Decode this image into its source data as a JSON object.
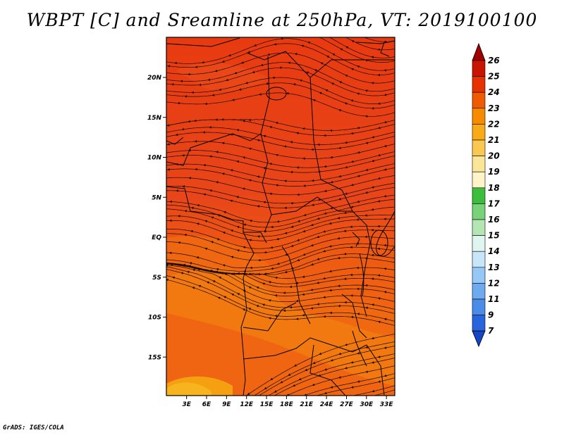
{
  "title": "WBPT [C] and Sreamline at 250hPa, VT: 2019100100",
  "footer": "GrADS: IGES/COLA",
  "map": {
    "lat_labels": [
      {
        "text": "20N",
        "lat": 20
      },
      {
        "text": "15N",
        "lat": 15
      },
      {
        "text": "10N",
        "lat": 10
      },
      {
        "text": "5N",
        "lat": 5
      },
      {
        "text": "EQ",
        "lat": 0
      },
      {
        "text": "5S",
        "lat": -5
      },
      {
        "text": "10S",
        "lat": -10
      },
      {
        "text": "15S",
        "lat": -15
      }
    ],
    "lon_labels": [
      {
        "text": "3E",
        "lon": 3
      },
      {
        "text": "6E",
        "lon": 6
      },
      {
        "text": "9E",
        "lon": 9
      },
      {
        "text": "12E",
        "lon": 12
      },
      {
        "text": "15E",
        "lon": 15
      },
      {
        "text": "18E",
        "lon": 18
      },
      {
        "text": "21E",
        "lon": 21
      },
      {
        "text": "24E",
        "lon": 24
      },
      {
        "text": "27E",
        "lon": 27
      },
      {
        "text": "30E",
        "lon": 30
      },
      {
        "text": "33E",
        "lon": 33
      }
    ]
  },
  "colorbar": {
    "levels": [
      "26",
      "25",
      "24",
      "23",
      "22",
      "21",
      "20",
      "19",
      "18",
      "17",
      "16",
      "15",
      "14",
      "13",
      "12",
      "11",
      "9",
      "7"
    ],
    "colors": [
      "#a00000",
      "#c81400",
      "#e63200",
      "#f05a00",
      "#f58c00",
      "#faaa14",
      "#fac850",
      "#fae696",
      "#fff5c8",
      "#3cbe3c",
      "#78d278",
      "#b4e6b4",
      "#e1f5f0",
      "#c8e6fa",
      "#96c8f5",
      "#6eaaf0",
      "#4a8ce8",
      "#2864dc",
      "#1446c8"
    ]
  }
}
